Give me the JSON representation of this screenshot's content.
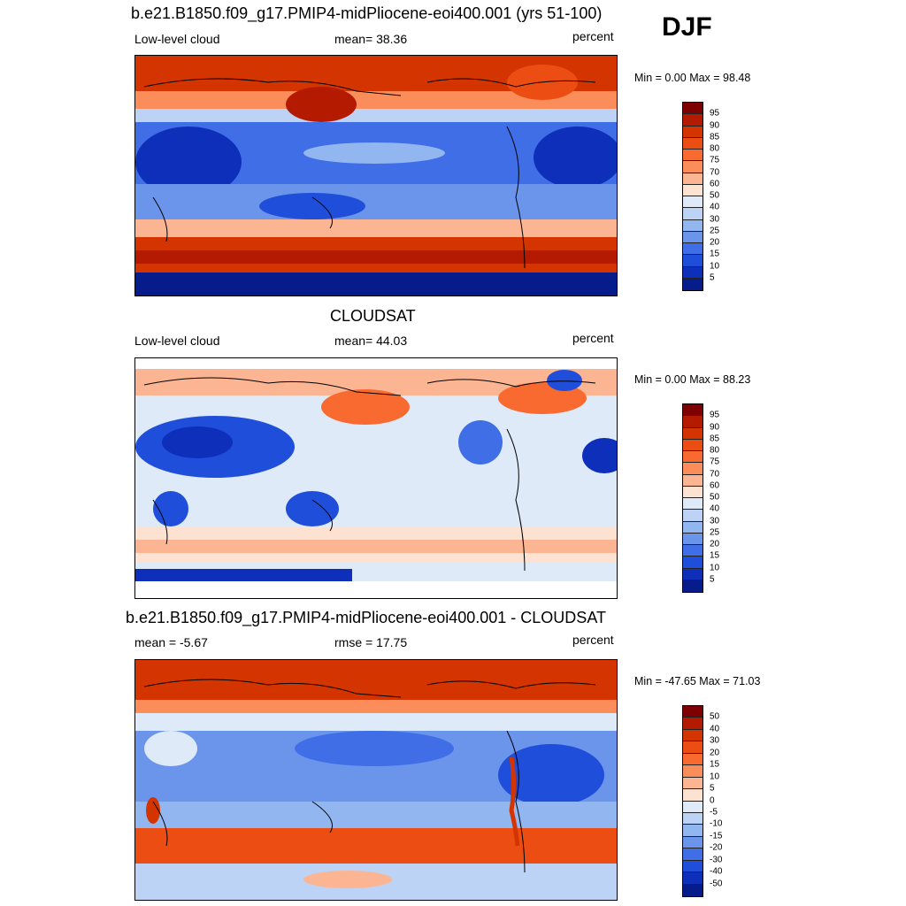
{
  "season": "DJF",
  "panels": [
    {
      "title": "b.e21.B1850.f09_g17.PMIP4-midPliocene-eoi400.001 (yrs 51-100)",
      "left_label": "Low-level cloud",
      "center_label": "mean=  38.36",
      "right_label": "percent",
      "minmax": "Min =   0.00 Max =  98.48",
      "colorbar_labels": [
        "95",
        "90",
        "85",
        "80",
        "75",
        "70",
        "60",
        "50",
        "40",
        "30",
        "25",
        "20",
        "15",
        "10",
        "5"
      ]
    },
    {
      "title": "CLOUDSAT",
      "left_label": "Low-level cloud",
      "center_label": "mean=  44.03",
      "right_label": "percent",
      "minmax": "Min =   0.00 Max =  88.23",
      "colorbar_labels": [
        "95",
        "90",
        "85",
        "80",
        "75",
        "70",
        "60",
        "50",
        "40",
        "30",
        "25",
        "20",
        "15",
        "10",
        "5"
      ]
    },
    {
      "title": "b.e21.B1850.f09_g17.PMIP4-midPliocene-eoi400.001 - CLOUDSAT",
      "left_label": "mean =  -5.67",
      "center_label": "rmse =  17.75",
      "right_label": "percent",
      "minmax": "Min = -47.65 Max =  71.03",
      "colorbar_labels": [
        "50",
        "40",
        "30",
        "20",
        "15",
        "10",
        "5",
        "0",
        "-5",
        "-10",
        "-15",
        "-20",
        "-30",
        "-40",
        "-50"
      ]
    }
  ],
  "colors": {
    "palette_16": [
      "#7f0000",
      "#b31a00",
      "#d43500",
      "#ec4d12",
      "#f86a30",
      "#fb8d5a",
      "#fcb592",
      "#fde2d2",
      "#dfeaf9",
      "#bcd3f5",
      "#92b6f0",
      "#6a95ea",
      "#3f6ee6",
      "#1f4edb",
      "#0d2fba",
      "#051c8a"
    ]
  }
}
